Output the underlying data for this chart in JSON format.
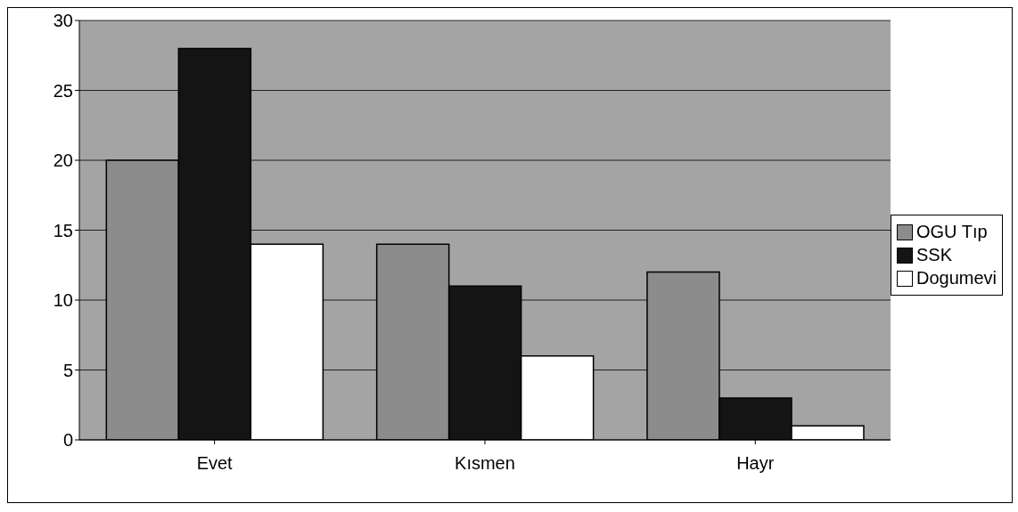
{
  "chart_data": {
    "type": "bar",
    "categories": [
      "Evet",
      "Kısmen",
      "Hayr"
    ],
    "series": [
      {
        "name": "OGU Tıp",
        "color": "#8c8c8c",
        "values": [
          20,
          14,
          12
        ]
      },
      {
        "name": "SSK",
        "color": "#141414",
        "values": [
          28,
          11,
          3
        ]
      },
      {
        "name": "Dogumevi",
        "color": "#ffffff",
        "values": [
          14,
          6,
          1
        ]
      }
    ],
    "ylim": [
      0,
      30
    ],
    "yticks": [
      0,
      5,
      10,
      15,
      20,
      25,
      30
    ],
    "grid": "y",
    "legend": "right"
  }
}
